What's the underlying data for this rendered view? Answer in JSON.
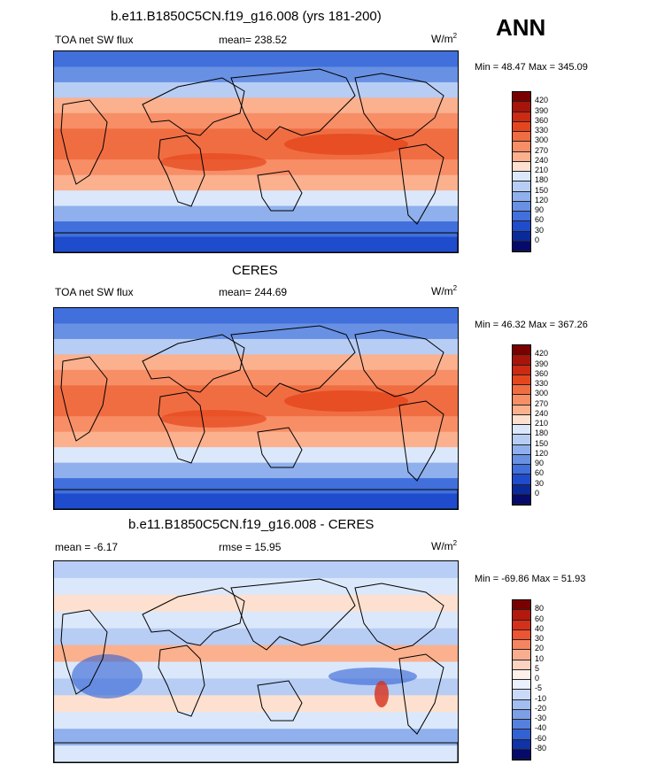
{
  "season": "ANN",
  "panels": [
    {
      "title": "b.e11.B1850C5CN.f19_g16.008 (yrs 181-200)",
      "left_label": "TOA net SW flux",
      "center_label": "mean= 238.52",
      "units": "W/m",
      "units_sup": "2",
      "minmax": "Min =  48.47 Max = 345.09",
      "map": "model",
      "colorbar": {
        "levels": [
          "420",
          "390",
          "360",
          "330",
          "300",
          "270",
          "240",
          "210",
          "180",
          "150",
          "120",
          "90",
          "60",
          "30",
          "0"
        ],
        "colors": [
          "#7a0000",
          "#a8130a",
          "#cc2a12",
          "#e5461d",
          "#f06d42",
          "#f78e66",
          "#fbb08e",
          "#fde0cf",
          "#dbe8fb",
          "#b7cdf4",
          "#8fb0ec",
          "#6890e3",
          "#416fdb",
          "#1f4ccc",
          "#0b2a9a",
          "#050a6b"
        ]
      }
    },
    {
      "title": "CERES",
      "left_label": "TOA net SW flux",
      "center_label": "mean= 244.69",
      "units": "W/m",
      "units_sup": "2",
      "minmax": "Min =  46.32 Max = 367.26",
      "map": "obs",
      "colorbar": {
        "levels": [
          "420",
          "390",
          "360",
          "330",
          "300",
          "270",
          "240",
          "210",
          "180",
          "150",
          "120",
          "90",
          "60",
          "30",
          "0"
        ],
        "colors": [
          "#7a0000",
          "#a8130a",
          "#cc2a12",
          "#e5461d",
          "#f06d42",
          "#f78e66",
          "#fbb08e",
          "#fde0cf",
          "#dbe8fb",
          "#b7cdf4",
          "#8fb0ec",
          "#6890e3",
          "#416fdb",
          "#1f4ccc",
          "#0b2a9a",
          "#050a6b"
        ]
      }
    },
    {
      "title": "b.e11.B1850C5CN.f19_g16.008 - CERES",
      "left_label": "mean =  -6.17",
      "center_label": "rmse =  15.95",
      "units": "W/m",
      "units_sup": "2",
      "minmax": "Min = -69.86 Max =  51.93",
      "map": "diff",
      "colorbar": {
        "levels": [
          "80",
          "60",
          "40",
          "30",
          "20",
          "10",
          "5",
          "0",
          "-5",
          "-10",
          "-20",
          "-30",
          "-40",
          "-60",
          "-80"
        ],
        "colors": [
          "#7a0000",
          "#b3190d",
          "#d6301a",
          "#ec5432",
          "#f58561",
          "#f9ad8f",
          "#fcd2c0",
          "#fdf0ea",
          "#eaf0fc",
          "#c9d9f7",
          "#a2bdef",
          "#7d9fe6",
          "#5680dd",
          "#3161d3",
          "#1033a8",
          "#050a6b"
        ]
      }
    }
  ]
}
